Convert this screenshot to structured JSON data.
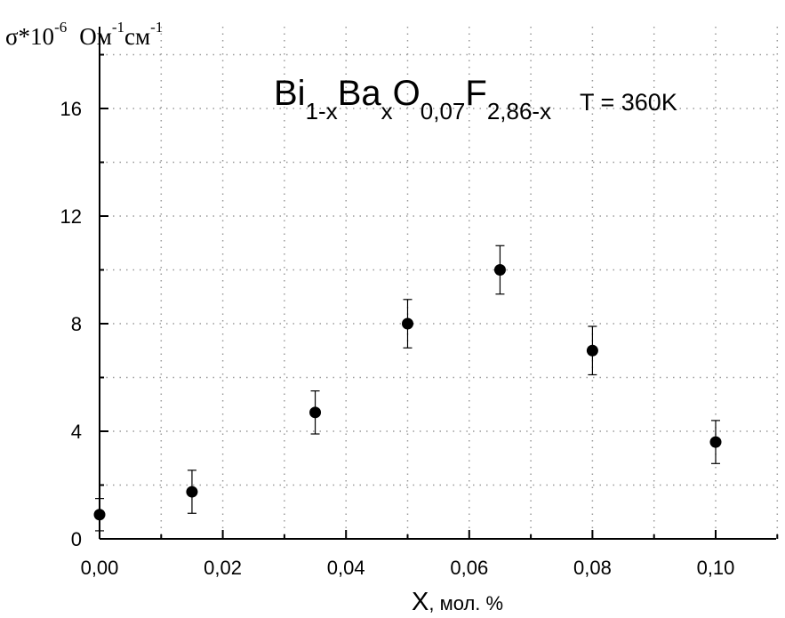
{
  "chart_data": {
    "type": "scatter",
    "title": {
      "formula_parts": [
        {
          "text": "Bi",
          "sub": "1-x"
        },
        {
          "text": "Ba",
          "sub": "x"
        },
        {
          "text": "O",
          "sub": "0,07"
        },
        {
          "text": "F",
          "sub": "2,86-x"
        }
      ],
      "temperature": "T = 360K"
    },
    "xlabel": {
      "main": "X",
      "unit": ", мол. %"
    },
    "ylabel": {
      "sigma": "σ*10",
      "sigma_exp": "-6",
      "om": "Ом",
      "om_exp": "-1",
      "sm": "см",
      "sm_exp": "-1"
    },
    "xlim": [
      0,
      0.11
    ],
    "ylim": [
      0,
      18
    ],
    "x_ticks": [
      0,
      0.02,
      0.04,
      0.06,
      0.08,
      0.1
    ],
    "x_tick_labels": [
      "0,00",
      "0,02",
      "0,04",
      "0,06",
      "0,08",
      "0,10"
    ],
    "y_ticks": [
      0,
      4,
      8,
      12,
      16
    ],
    "y_tick_labels": [
      "0",
      "4",
      "8",
      "12",
      "16"
    ],
    "grid": true,
    "points": [
      {
        "x": 0.0,
        "y": 0.9,
        "err": 0.6
      },
      {
        "x": 0.015,
        "y": 1.75,
        "err": 0.8
      },
      {
        "x": 0.035,
        "y": 4.7,
        "err": 0.8
      },
      {
        "x": 0.05,
        "y": 8.0,
        "err": 0.9
      },
      {
        "x": 0.065,
        "y": 10.0,
        "err": 0.9
      },
      {
        "x": 0.08,
        "y": 7.0,
        "err": 0.9
      },
      {
        "x": 0.1,
        "y": 3.6,
        "err": 0.8
      }
    ],
    "marker_color": "#000000"
  }
}
